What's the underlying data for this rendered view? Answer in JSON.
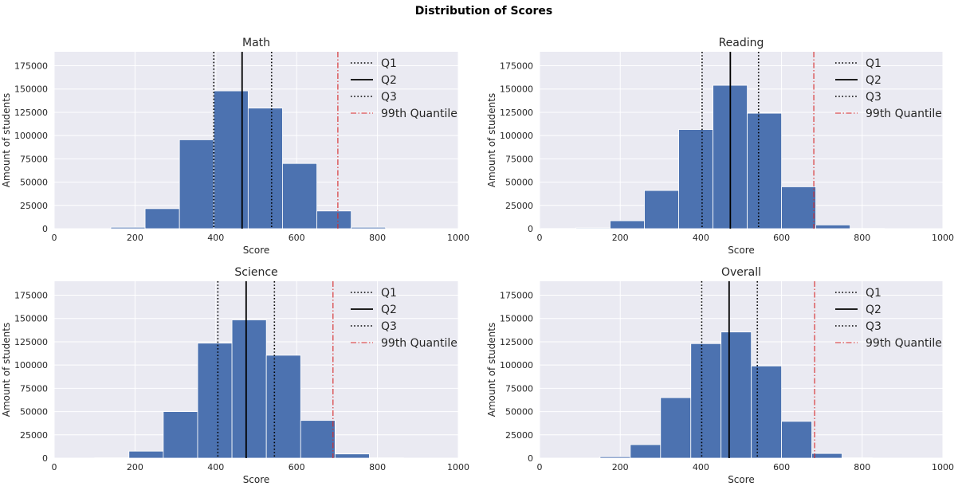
{
  "figure_title": "Distribution of Scores",
  "colors": {
    "background": "#EAEAF2",
    "grid": "#FFFFFF",
    "bar": "#4C72B0",
    "quartile": "#000000",
    "quantile99": "#D62728"
  },
  "chart_data": [
    {
      "type": "bar",
      "title": "Math",
      "xlabel": "Score",
      "ylabel": "Amount of students",
      "xlim": [
        0,
        1000
      ],
      "ylim": [
        0,
        190000
      ],
      "xticks": [
        0,
        200,
        400,
        600,
        800,
        1000
      ],
      "yticks": [
        0,
        25000,
        50000,
        75000,
        100000,
        125000,
        150000,
        175000
      ],
      "bins": [
        {
          "x0": 140,
          "x1": 225,
          "count": 1500
        },
        {
          "x0": 225,
          "x1": 310,
          "count": 21500
        },
        {
          "x0": 310,
          "x1": 395,
          "count": 95500
        },
        {
          "x0": 395,
          "x1": 480,
          "count": 148000
        },
        {
          "x0": 480,
          "x1": 565,
          "count": 129500
        },
        {
          "x0": 565,
          "x1": 650,
          "count": 70000
        },
        {
          "x0": 650,
          "x1": 735,
          "count": 19000
        },
        {
          "x0": 735,
          "x1": 820,
          "count": 1500
        }
      ],
      "lines": {
        "Q1": 395,
        "Q2": 465,
        "Q3": 538,
        "99th Quantile": 702
      },
      "legend": [
        "Q1",
        "Q2",
        "Q3",
        "99th Quantile"
      ],
      "legend_loc": "upper right"
    },
    {
      "type": "bar",
      "title": "Reading",
      "xlabel": "Score",
      "ylabel": "Amount of students",
      "xlim": [
        0,
        1000
      ],
      "ylim": [
        0,
        190000
      ],
      "xticks": [
        0,
        200,
        400,
        600,
        800,
        1000
      ],
      "yticks": [
        0,
        25000,
        50000,
        75000,
        100000,
        125000,
        150000,
        175000
      ],
      "bins": [
        {
          "x0": 5,
          "x1": 90,
          "count": 200
        },
        {
          "x0": 90,
          "x1": 175,
          "count": 800
        },
        {
          "x0": 175,
          "x1": 260,
          "count": 8500
        },
        {
          "x0": 260,
          "x1": 345,
          "count": 41000
        },
        {
          "x0": 345,
          "x1": 430,
          "count": 106500
        },
        {
          "x0": 430,
          "x1": 515,
          "count": 154000
        },
        {
          "x0": 515,
          "x1": 600,
          "count": 124000
        },
        {
          "x0": 600,
          "x1": 685,
          "count": 45000
        },
        {
          "x0": 685,
          "x1": 770,
          "count": 4000
        },
        {
          "x0": 770,
          "x1": 855,
          "count": 300
        }
      ],
      "lines": {
        "Q1": 403,
        "Q2": 473,
        "Q3": 543,
        "99th Quantile": 680
      },
      "legend": [
        "Q1",
        "Q2",
        "Q3",
        "99th Quantile"
      ],
      "legend_loc": "upper right"
    },
    {
      "type": "bar",
      "title": "Science",
      "xlabel": "Score",
      "ylabel": "Amount of students",
      "xlim": [
        0,
        1000
      ],
      "ylim": [
        0,
        190000
      ],
      "xticks": [
        0,
        200,
        400,
        600,
        800,
        1000
      ],
      "yticks": [
        0,
        25000,
        50000,
        75000,
        100000,
        125000,
        150000,
        175000
      ],
      "bins": [
        {
          "x0": 100,
          "x1": 185,
          "count": 300
        },
        {
          "x0": 185,
          "x1": 270,
          "count": 7500
        },
        {
          "x0": 270,
          "x1": 355,
          "count": 50000
        },
        {
          "x0": 355,
          "x1": 440,
          "count": 123500
        },
        {
          "x0": 440,
          "x1": 525,
          "count": 148500
        },
        {
          "x0": 525,
          "x1": 610,
          "count": 110500
        },
        {
          "x0": 610,
          "x1": 695,
          "count": 40500
        },
        {
          "x0": 695,
          "x1": 780,
          "count": 4500
        },
        {
          "x0": 780,
          "x1": 865,
          "count": 300
        }
      ],
      "lines": {
        "Q1": 405,
        "Q2": 475,
        "Q3": 545,
        "99th Quantile": 690
      },
      "legend": [
        "Q1",
        "Q2",
        "Q3",
        "99th Quantile"
      ],
      "legend_loc": "upper right"
    },
    {
      "type": "bar",
      "title": "Overall",
      "xlabel": "Score",
      "ylabel": "Amount of students",
      "xlim": [
        0,
        1000
      ],
      "ylim": [
        0,
        190000
      ],
      "xticks": [
        0,
        200,
        400,
        600,
        800,
        1000
      ],
      "yticks": [
        0,
        25000,
        50000,
        75000,
        100000,
        125000,
        150000,
        175000
      ],
      "bins": [
        {
          "x0": 150,
          "x1": 225,
          "count": 1500
        },
        {
          "x0": 225,
          "x1": 300,
          "count": 14500
        },
        {
          "x0": 300,
          "x1": 375,
          "count": 65000
        },
        {
          "x0": 375,
          "x1": 450,
          "count": 123000
        },
        {
          "x0": 450,
          "x1": 525,
          "count": 135500
        },
        {
          "x0": 525,
          "x1": 600,
          "count": 99000
        },
        {
          "x0": 600,
          "x1": 675,
          "count": 39500
        },
        {
          "x0": 675,
          "x1": 750,
          "count": 5000
        },
        {
          "x0": 750,
          "x1": 825,
          "count": 300
        }
      ],
      "lines": {
        "Q1": 402,
        "Q2": 470,
        "Q3": 540,
        "99th Quantile": 682
      },
      "legend": [
        "Q1",
        "Q2",
        "Q3",
        "99th Quantile"
      ],
      "legend_loc": "upper right"
    }
  ]
}
